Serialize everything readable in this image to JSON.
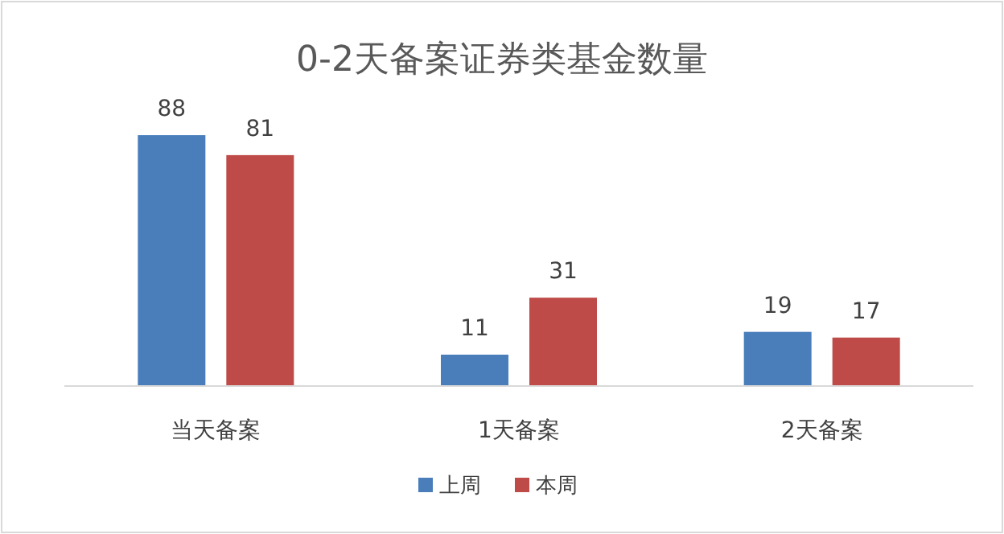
{
  "chart_data": {
    "type": "bar",
    "title": "0-2天备案证券类基金数量",
    "categories": [
      "当天备案",
      "1天备案",
      "2天备案"
    ],
    "series": [
      {
        "name": "上周",
        "color": "#4a7ebb",
        "values": [
          88,
          11,
          19
        ]
      },
      {
        "name": "本周",
        "color": "#be4b48",
        "values": [
          81,
          31,
          17
        ]
      }
    ],
    "data_labels": true,
    "legend": "bottom"
  }
}
